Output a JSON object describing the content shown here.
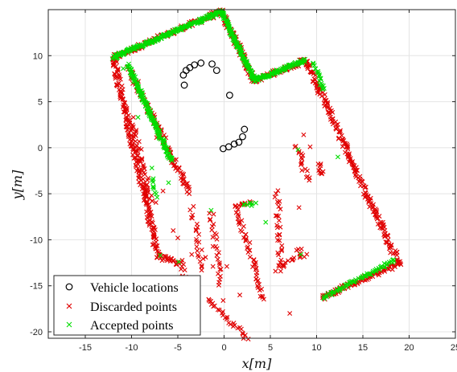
{
  "chart_data": {
    "type": "scatter",
    "xlabel": "x[m]",
    "ylabel": "y[m]",
    "xlim": [
      -19,
      25
    ],
    "ylim": [
      -20.7,
      15
    ],
    "xticks": [
      -15,
      -10,
      -5,
      0,
      5,
      10,
      15,
      20,
      25
    ],
    "yticks": [
      10,
      5,
      0,
      -5,
      -10,
      -15,
      -20
    ],
    "grid": true,
    "legend": {
      "placement": "bottom-left",
      "entries": [
        "Vehicle locations",
        "Discarded points",
        "Accepted points"
      ]
    },
    "colors": {
      "vehicle": "#000000",
      "discarded": "#e00000",
      "accepted": "#00dd00"
    },
    "series": [
      {
        "name": "Vehicle locations",
        "marker": "circle",
        "points": [
          [
            -4.3,
            6.8
          ],
          [
            -4.4,
            7.9
          ],
          [
            -4.1,
            8.4
          ],
          [
            -3.7,
            8.7
          ],
          [
            -3.2,
            9.0
          ],
          [
            -2.5,
            9.2
          ],
          [
            -1.3,
            9.1
          ],
          [
            -0.8,
            8.4
          ],
          [
            0.6,
            5.7
          ],
          [
            2.2,
            2.0
          ],
          [
            2.0,
            1.2
          ],
          [
            1.6,
            0.6
          ],
          [
            1.1,
            0.4
          ],
          [
            0.5,
            0.1
          ],
          [
            -0.1,
            -0.1
          ]
        ]
      },
      {
        "name": "Discarded points",
        "marker": "x",
        "segments": [
          {
            "from": [
              -12,
              9.8
            ],
            "to": [
              -0.3,
              14.8
            ],
            "count": 120
          },
          {
            "from": [
              -0.3,
              14.8
            ],
            "to": [
              3.3,
              7.3
            ],
            "count": 80
          },
          {
            "from": [
              3.3,
              7.3
            ],
            "to": [
              8.8,
              9.5
            ],
            "count": 60
          },
          {
            "from": [
              8.8,
              9.5
            ],
            "to": [
              18.9,
              -12.6
            ],
            "count": 200
          },
          {
            "from": [
              18.9,
              -12.6
            ],
            "to": [
              10.5,
              -16.3
            ],
            "count": 90
          },
          {
            "from": [
              -12,
              9.8
            ],
            "to": [
              -7.1,
              -11.8
            ],
            "count": 200
          },
          {
            "from": [
              -10.3,
              8.6
            ],
            "to": [
              -3.8,
              -4.8
            ],
            "count": 110
          },
          {
            "from": [
              -10.0,
              2.8
            ],
            "to": [
              -7.6,
              -6.2
            ],
            "count": 35
          },
          {
            "from": [
              -7.1,
              -11.8
            ],
            "to": [
              -4.8,
              -12.6
            ],
            "count": 25
          },
          {
            "from": [
              -4.6,
              -12.4
            ],
            "to": [
              -3.7,
              -19.5
            ],
            "count": 28
          },
          {
            "from": [
              -3.5,
              -6.5
            ],
            "to": [
              -2.2,
              -13.5
            ],
            "count": 22
          },
          {
            "from": [
              -1.4,
              -7.0
            ],
            "to": [
              -0.3,
              -15.0
            ],
            "count": 26
          },
          {
            "from": [
              1.3,
              -6.4
            ],
            "to": [
              4.3,
              -16.5
            ],
            "count": 48
          },
          {
            "from": [
              1.3,
              -6.4
            ],
            "to": [
              2.8,
              -6.1
            ],
            "count": 10
          },
          {
            "from": [
              5.7,
              -4.8
            ],
            "to": [
              6.2,
              -13.2
            ],
            "count": 30
          },
          {
            "from": [
              5.7,
              -13.2
            ],
            "to": [
              8.8,
              -11.5
            ],
            "count": 16
          },
          {
            "from": [
              8.0,
              -11.3
            ],
            "to": [
              8.3,
              -11.2
            ],
            "count": 4
          },
          {
            "from": [
              -1.8,
              -16.5
            ],
            "to": [
              2.5,
              -20.6
            ],
            "count": 28
          },
          {
            "from": [
              7.8,
              0.3
            ],
            "to": [
              9.1,
              -3.6
            ],
            "count": 18
          },
          {
            "from": [
              10.2,
              -1.9
            ],
            "to": [
              10.6,
              -3.0
            ],
            "count": 10
          }
        ],
        "extra_points": [
          [
            -9.8,
            3.3
          ],
          [
            -9.5,
            1.9
          ],
          [
            -7.3,
            1.1
          ],
          [
            -6.6,
            -4.7
          ],
          [
            -5.5,
            -9.0
          ],
          [
            -5.0,
            -9.8
          ],
          [
            -3.5,
            -11.6
          ],
          [
            -2.9,
            -11.2
          ],
          [
            -1.2,
            -12.9
          ],
          [
            0.3,
            -12.9
          ],
          [
            1.7,
            -16.0
          ],
          [
            7.1,
            -18.0
          ],
          [
            -2.0,
            -11.9
          ],
          [
            -3.2,
            -14.3
          ],
          [
            -1.6,
            -16.6
          ],
          [
            -0.1,
            -16.6
          ],
          [
            3.6,
            -14.5
          ],
          [
            8.6,
            1.4
          ],
          [
            9.3,
            0.1
          ],
          [
            8.1,
            -6.5
          ]
        ]
      },
      {
        "name": "Accepted points",
        "marker": "x",
        "segments": [
          {
            "from": [
              -12,
              9.8
            ],
            "to": [
              -0.3,
              14.8
            ],
            "count": 210
          },
          {
            "from": [
              -0.3,
              14.8
            ],
            "to": [
              3.3,
              7.3
            ],
            "count": 140
          },
          {
            "from": [
              3.3,
              7.3
            ],
            "to": [
              8.8,
              9.5
            ],
            "count": 90
          },
          {
            "from": [
              -10.4,
              9.0
            ],
            "to": [
              -5.7,
              -1.4
            ],
            "count": 160
          },
          {
            "from": [
              9.7,
              9.2
            ],
            "to": [
              10.8,
              6.2
            ],
            "count": 20
          },
          {
            "from": [
              18.4,
              -12.2
            ],
            "to": [
              10.8,
              -16.3
            ],
            "count": 70
          },
          {
            "from": [
              -7.8,
              -3.2
            ],
            "to": [
              -7.3,
              -5.3
            ],
            "count": 10
          },
          {
            "from": [
              2.2,
              -6.2
            ],
            "to": [
              3.3,
              -6.1
            ],
            "count": 8
          }
        ],
        "extra_points": [
          [
            -9.3,
            3.3
          ],
          [
            -10.9,
            8.6
          ],
          [
            -7.8,
            -2.2
          ],
          [
            -6.9,
            -11.7
          ],
          [
            -4.9,
            -12.4
          ],
          [
            4.5,
            -8.1
          ],
          [
            8.3,
            -11.6
          ],
          [
            8.0,
            -0.2
          ],
          [
            12.3,
            -1.0
          ],
          [
            -1.4,
            -6.8
          ],
          [
            -6.0,
            -3.8
          ]
        ]
      }
    ]
  }
}
